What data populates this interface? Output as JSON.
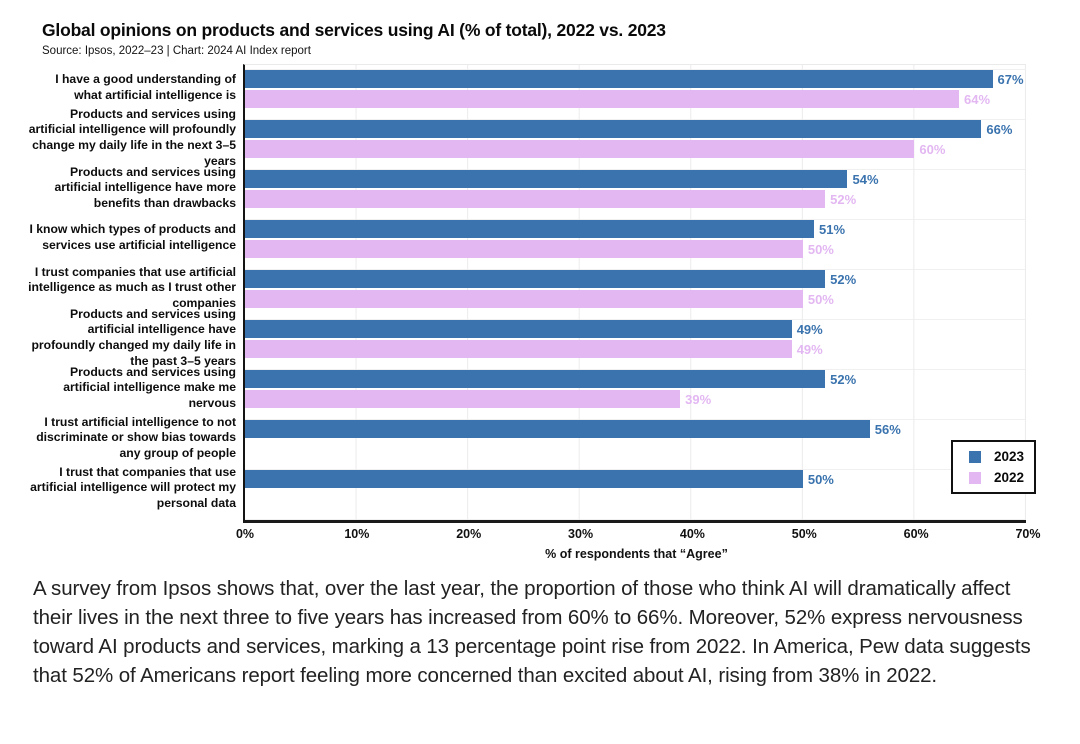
{
  "header": {
    "title": "Global opinions on products and services using AI (% of total), 2022 vs. 2023",
    "source": "Source: Ipsos, 2022–23 | Chart: 2024 AI Index report"
  },
  "chart_data": {
    "type": "bar",
    "orientation": "horizontal",
    "title": "Global opinions on products and services using AI (% of total), 2022 vs. 2023",
    "xlabel": "% of respondents that “Agree”",
    "xlim": [
      0,
      70
    ],
    "xticks": [
      "0%",
      "10%",
      "20%",
      "30%",
      "40%",
      "50%",
      "60%",
      "70%"
    ],
    "grid": true,
    "legend_position": "bottom-right",
    "value_suffix": "%",
    "categories": [
      "I have a good understanding of what artificial intelligence is",
      "Products and services using artificial intelligence will profoundly change my daily life in the next 3–5 years",
      "Products and services using artificial intelligence have more benefits than drawbacks",
      "I know which types of products and services use artificial intelligence",
      "I trust companies that use artificial intelligence as much as I trust other companies",
      "Products and services using artificial intelligence have profoundly changed my daily life in the past 3–5 years",
      "Products and services using artificial intelligence make me nervous",
      "I trust artificial intelligence to not discriminate or show bias towards any group of people",
      "I trust that companies that use artificial intelligence will protect my personal data"
    ],
    "series": [
      {
        "name": "2023",
        "color": "#3A73AE",
        "values": [
          67,
          66,
          54,
          51,
          52,
          49,
          52,
          56,
          50
        ]
      },
      {
        "name": "2022",
        "color": "#E3B7F2",
        "values": [
          64,
          60,
          52,
          50,
          50,
          49,
          39,
          null,
          null
        ]
      }
    ]
  },
  "legend": {
    "items": [
      {
        "label": "2023",
        "color": "#3A73AE"
      },
      {
        "label": "2022",
        "color": "#E3B7F2"
      }
    ]
  },
  "caption": "A survey from Ipsos shows that, over the last year, the proportion of those who think AI will dramatically affect their lives in the next three to five years has increased from 60% to 66%. Moreover, 52% express nervousness toward AI products and services, marking a 13 percentage point rise from 2022. In America, Pew data suggests that 52% of Americans report feeling more concerned than excited about AI, rising from 38% in 2022."
}
